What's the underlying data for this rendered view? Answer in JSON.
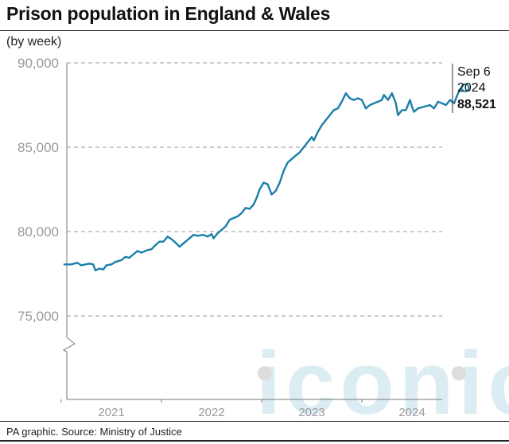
{
  "header": {
    "title": "Prison population in England & Wales",
    "subtitle": "(by week)"
  },
  "footer": {
    "source": "PA graphic. Source: Ministry of Justice"
  },
  "watermark": {
    "text": "iconic"
  },
  "colors": {
    "line": "#1a7fa8",
    "grid": "#9a9a9a",
    "watermark": "#dcecf3"
  },
  "chart_data": {
    "type": "line",
    "title": "Prison population in England & Wales",
    "subtitle": "(by week)",
    "xlabel": "",
    "ylabel": "",
    "y_ticks": [
      75000,
      80000,
      85000,
      90000
    ],
    "y_tick_labels": [
      "75,000",
      "80,000",
      "85,000",
      "90,000"
    ],
    "x_ticks": [
      2021,
      2022,
      2023,
      2024
    ],
    "x_tick_labels": [
      "2021",
      "2022",
      "2023",
      "2024"
    ],
    "xlim": [
      2020.55,
      2024.9
    ],
    "ylim": [
      72000,
      90000
    ],
    "axis_break": true,
    "grid": "horizontal-dashed",
    "annotation": {
      "date_line1": "Sep 6",
      "date_line2": "2024",
      "value_label": "88,521",
      "x": 2024.68,
      "y": 88521
    },
    "series": [
      {
        "values": [
          [
            2020.53,
            78050
          ],
          [
            2020.6,
            78050
          ],
          [
            2020.66,
            78150
          ],
          [
            2020.7,
            78000
          ],
          [
            2020.78,
            78100
          ],
          [
            2020.82,
            78050
          ],
          [
            2020.84,
            77700
          ],
          [
            2020.88,
            77800
          ],
          [
            2020.92,
            77750
          ],
          [
            2020.95,
            78000
          ],
          [
            2021.0,
            78050
          ],
          [
            2021.04,
            78200
          ],
          [
            2021.1,
            78300
          ],
          [
            2021.14,
            78500
          ],
          [
            2021.18,
            78450
          ],
          [
            2021.22,
            78650
          ],
          [
            2021.26,
            78850
          ],
          [
            2021.3,
            78750
          ],
          [
            2021.36,
            78900
          ],
          [
            2021.4,
            78950
          ],
          [
            2021.44,
            79200
          ],
          [
            2021.48,
            79400
          ],
          [
            2021.52,
            79400
          ],
          [
            2021.56,
            79700
          ],
          [
            2021.6,
            79550
          ],
          [
            2021.64,
            79350
          ],
          [
            2021.68,
            79100
          ],
          [
            2021.72,
            79300
          ],
          [
            2021.76,
            79500
          ],
          [
            2021.82,
            79800
          ],
          [
            2021.86,
            79750
          ],
          [
            2021.92,
            79800
          ],
          [
            2021.96,
            79700
          ],
          [
            2022.0,
            79850
          ],
          [
            2022.02,
            79600
          ],
          [
            2022.06,
            79900
          ],
          [
            2022.1,
            80100
          ],
          [
            2022.14,
            80300
          ],
          [
            2022.18,
            80700
          ],
          [
            2022.22,
            80800
          ],
          [
            2022.26,
            80900
          ],
          [
            2022.3,
            81100
          ],
          [
            2022.34,
            81400
          ],
          [
            2022.38,
            81350
          ],
          [
            2022.42,
            81600
          ],
          [
            2022.45,
            82000
          ],
          [
            2022.48,
            82500
          ],
          [
            2022.52,
            82900
          ],
          [
            2022.56,
            82800
          ],
          [
            2022.6,
            82200
          ],
          [
            2022.64,
            82400
          ],
          [
            2022.68,
            82900
          ],
          [
            2022.72,
            83600
          ],
          [
            2022.76,
            84100
          ],
          [
            2022.8,
            84300
          ],
          [
            2022.84,
            84500
          ],
          [
            2022.88,
            84700
          ],
          [
            2022.92,
            85000
          ],
          [
            2022.96,
            85300
          ],
          [
            2023.0,
            85600
          ],
          [
            2023.02,
            85400
          ],
          [
            2023.06,
            85900
          ],
          [
            2023.1,
            86300
          ],
          [
            2023.14,
            86600
          ],
          [
            2023.18,
            86900
          ],
          [
            2023.22,
            87200
          ],
          [
            2023.26,
            87300
          ],
          [
            2023.3,
            87700
          ],
          [
            2023.34,
            88200
          ],
          [
            2023.38,
            87900
          ],
          [
            2023.42,
            87800
          ],
          [
            2023.46,
            87900
          ],
          [
            2023.5,
            87800
          ],
          [
            2023.54,
            87300
          ],
          [
            2023.58,
            87500
          ],
          [
            2023.62,
            87600
          ],
          [
            2023.66,
            87700
          ],
          [
            2023.7,
            87800
          ],
          [
            2023.72,
            88100
          ],
          [
            2023.76,
            87800
          ],
          [
            2023.8,
            88200
          ],
          [
            2023.84,
            87600
          ],
          [
            2023.86,
            86900
          ],
          [
            2023.9,
            87200
          ],
          [
            2023.94,
            87200
          ],
          [
            2023.98,
            87800
          ],
          [
            2024.0,
            87400
          ],
          [
            2024.02,
            87100
          ],
          [
            2024.06,
            87300
          ],
          [
            2024.12,
            87400
          ],
          [
            2024.18,
            87500
          ],
          [
            2024.22,
            87300
          ],
          [
            2024.26,
            87700
          ],
          [
            2024.3,
            87600
          ],
          [
            2024.34,
            87500
          ],
          [
            2024.38,
            87800
          ],
          [
            2024.42,
            87600
          ],
          [
            2024.46,
            88200
          ],
          [
            2024.5,
            88600
          ],
          [
            2024.53,
            88521
          ]
        ]
      }
    ]
  }
}
